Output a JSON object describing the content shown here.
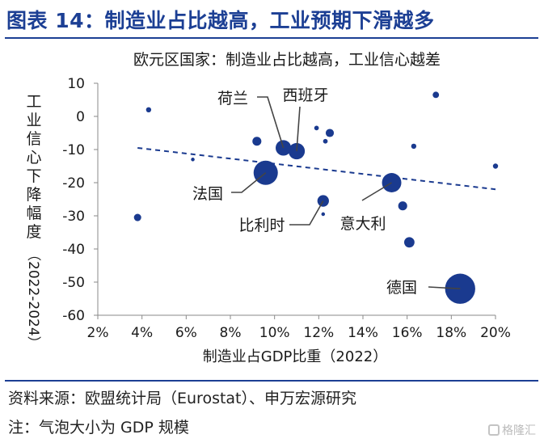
{
  "figure": {
    "title": "图表 14：制造业占比越高，工业预期下滑越多",
    "source": "资料来源：欧盟统计局（Eurostat）、申万宏源研究",
    "note": "注：气泡大小为 GDP 规模",
    "watermark": "格隆汇"
  },
  "colors": {
    "accent": "#1c3f94",
    "bubble": "#1a3a8f"
  },
  "chart_data": {
    "type": "scatter",
    "title": "欧元区国家：制造业占比越高，工业信心越差",
    "xlabel": "制造业占GDP比重（2022）",
    "ylabel": "工业信心下降幅度（2022-2024）",
    "xlim": [
      2,
      20
    ],
    "ylim": [
      -60,
      10
    ],
    "x_ticks": [
      "2%",
      "4%",
      "6%",
      "8%",
      "10%",
      "12%",
      "14%",
      "16%",
      "18%",
      "20%"
    ],
    "y_ticks": [
      "10",
      "0",
      "-10",
      "-20",
      "-30",
      "-40",
      "-50",
      "-60"
    ],
    "grid": false,
    "points": [
      {
        "x": 4.3,
        "y": 2,
        "size": 1
      },
      {
        "x": 3.8,
        "y": -30.5,
        "size": 2
      },
      {
        "x": 6.3,
        "y": -13,
        "size": 0.5
      },
      {
        "x": 9.2,
        "y": -7.5,
        "size": 3
      },
      {
        "x": 9.6,
        "y": -17,
        "size": 22
      },
      {
        "x": 10.4,
        "y": -9.5,
        "size": 9
      },
      {
        "x": 11.0,
        "y": -10.5,
        "size": 10
      },
      {
        "x": 11.9,
        "y": -3.5,
        "size": 0.8
      },
      {
        "x": 12.3,
        "y": -7.5,
        "size": 0.8
      },
      {
        "x": 12.5,
        "y": -5,
        "size": 2.5
      },
      {
        "x": 12.2,
        "y": -25.5,
        "size": 5
      },
      {
        "x": 12.2,
        "y": -29.5,
        "size": 0.5
      },
      {
        "x": 15.3,
        "y": -20,
        "size": 14
      },
      {
        "x": 15.8,
        "y": -27,
        "size": 3
      },
      {
        "x": 16.1,
        "y": -38,
        "size": 4
      },
      {
        "x": 16.3,
        "y": -9,
        "size": 1
      },
      {
        "x": 17.3,
        "y": 6.5,
        "size": 1.5
      },
      {
        "x": 18.4,
        "y": -52,
        "size": 34
      },
      {
        "x": 20.0,
        "y": -15,
        "size": 1
      }
    ],
    "trendline": {
      "x": [
        3.8,
        20.0
      ],
      "y": [
        -9.5,
        -22.0
      ],
      "style": "dashed"
    },
    "annotations": [
      {
        "text": "荷兰",
        "x": 10.4,
        "y": -9.5
      },
      {
        "text": "西班牙",
        "x": 11.0,
        "y": -10.5
      },
      {
        "text": "法国",
        "x": 9.6,
        "y": -17
      },
      {
        "text": "比利时",
        "x": 12.2,
        "y": -25.5
      },
      {
        "text": "意大利",
        "x": 15.3,
        "y": -20
      },
      {
        "text": "德国",
        "x": 18.4,
        "y": -52
      }
    ]
  }
}
